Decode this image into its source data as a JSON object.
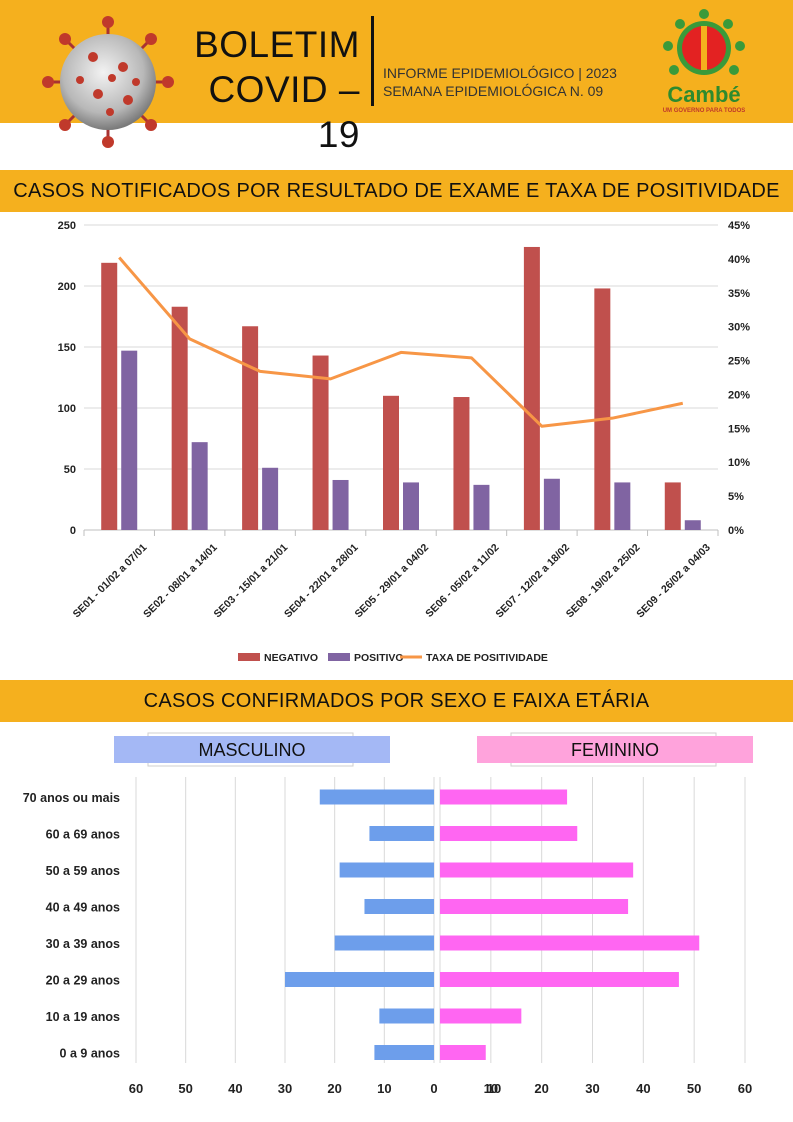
{
  "header": {
    "title_line1": "BOLETIM",
    "title_line2": "COVID – 19",
    "report_line1": "INFORME EPIDEMIOLÓGICO | 2023",
    "report_line2": "SEMANA EPIDEMIOLÓGICA  N. 09",
    "logo_text": "Cambé",
    "logo_tagline": "UM GOVERNO PARA TODOS"
  },
  "colors": {
    "band": "#f5b01e",
    "negativo": "#c0504d",
    "positivo": "#8064a2",
    "taxa": "#f79646",
    "masculino_bar": "#6d9eeb",
    "feminino_bar": "#ff66f2",
    "masculino_label_bg": "#a4b8f5",
    "feminino_label_bg": "#ffa3dc"
  },
  "sections": {
    "results_title": "CASOS NOTIFICADOS POR RESULTADO DE EXAME E TAXA DE POSITIVIDADE",
    "sex_age_title": "CASOS CONFIRMADOS POR SEXO E FAIXA ETÁRIA"
  },
  "chart_data": [
    {
      "type": "bar",
      "categories": [
        "SE01 - 01/02 a 07/01",
        "SE02 - 08/01 a 14/01",
        "SE03 - 15/01 a 21/01",
        "SE04 - 22/01 a 28/01",
        "SE05 - 29/01 a 04/02",
        "SE06 - 05/02 a 11/02",
        "SE07 - 12/02 a 18/02",
        "SE08 - 19/02 a 25/02",
        "SE09 - 26/02 a 04/03"
      ],
      "series": [
        {
          "name": "NEGATIVO",
          "kind": "bar",
          "axis": "left",
          "values": [
            219,
            183,
            167,
            143,
            110,
            109,
            232,
            198,
            39
          ]
        },
        {
          "name": "POSITIVO",
          "kind": "bar",
          "axis": "left",
          "values": [
            147,
            72,
            51,
            41,
            39,
            37,
            42,
            39,
            8
          ]
        },
        {
          "name": "TAXA DE POSITIVIDADE",
          "kind": "line",
          "axis": "right",
          "values": [
            40.2,
            28.2,
            23.4,
            22.3,
            26.2,
            25.4,
            15.3,
            16.5,
            18.7
          ]
        }
      ],
      "ylim": [
        0,
        250
      ],
      "yticks": [
        "0",
        "50",
        "100",
        "150",
        "200",
        "250"
      ],
      "y2lim": [
        0,
        45
      ],
      "y2ticks": [
        "0%",
        "5%",
        "10%",
        "15%",
        "20%",
        "25%",
        "30%",
        "35%",
        "40%",
        "45%"
      ],
      "grid": true,
      "legend_position": "bottom"
    },
    {
      "type": "bar",
      "orientation": "horizontal",
      "categories": [
        "70 anos ou mais",
        "60 a 69 anos",
        "50 a 59 anos",
        "40 a 49 anos",
        "30 a 39 anos",
        "20 a 29 anos",
        "10 a 19 anos",
        "0 a 9 anos"
      ],
      "series": [
        {
          "name": "MASCULINO",
          "values": [
            23,
            13,
            19,
            14,
            20,
            30,
            11,
            12
          ]
        },
        {
          "name": "FEMININO",
          "values": [
            25,
            27,
            38,
            37,
            51,
            47,
            16,
            9
          ]
        }
      ],
      "xlim": [
        0,
        60
      ],
      "xticks": [
        "0",
        "10",
        "20",
        "30",
        "40",
        "50",
        "60"
      ],
      "grid": true
    }
  ]
}
